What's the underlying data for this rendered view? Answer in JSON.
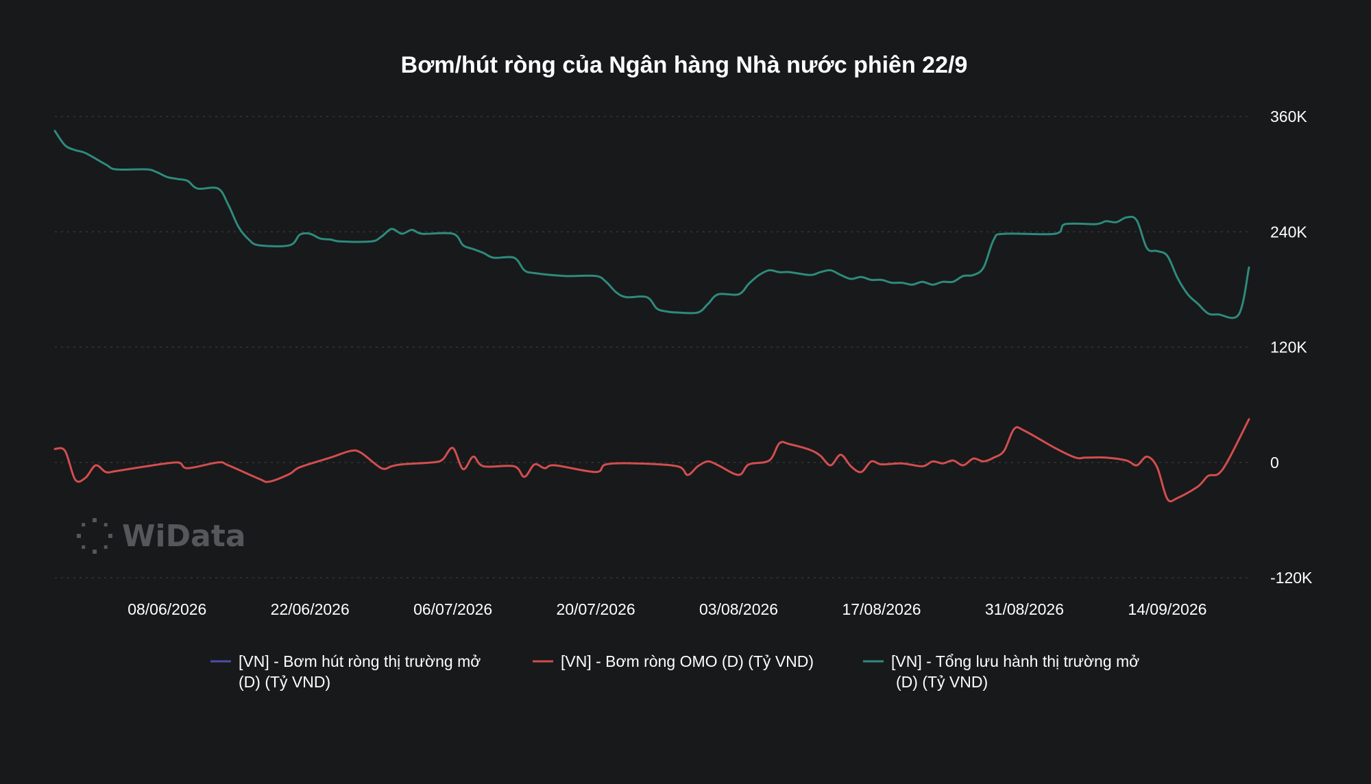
{
  "chart_data": {
    "type": "line",
    "title": "Bơm/hút ròng của Ngân hàng Nhà nước phiên 22/9",
    "watermark": "WiData",
    "colors": {
      "background": "#18191b",
      "grid": "#3a3c3f",
      "series_0": "#4b4fa6",
      "series_1": "#d24e4e",
      "series_2": "#2e8b7d"
    },
    "y_axis": {
      "position": "right",
      "ylim": [
        -120000,
        360000
      ],
      "ticks": [
        360000,
        240000,
        120000,
        0,
        -120000
      ],
      "tick_labels": [
        "360K",
        "240K",
        "120K",
        "0",
        "-120K"
      ],
      "grid": true
    },
    "x_axis": {
      "range": [
        "2026-05-28",
        "2026-09-22"
      ],
      "tick_dates": [
        "2026-06-08",
        "2026-06-22",
        "2026-07-06",
        "2026-07-20",
        "2026-08-03",
        "2026-08-17",
        "2026-08-31",
        "2026-09-14"
      ],
      "tick_labels": [
        "08/06/2026",
        "22/06/2026",
        "06/07/2026",
        "20/07/2026",
        "03/08/2026",
        "17/08/2026",
        "31/08/2026",
        "14/09/2026"
      ]
    },
    "legend_position": "bottom",
    "legend": [
      {
        "lines": [
          "[VN] - Bơm hút ròng thị trường mở",
          "(D) (Tỷ VND)"
        ]
      },
      {
        "lines": [
          "[VN] - Bơm ròng OMO (D) (Tỷ VND)"
        ]
      },
      {
        "lines": [
          "[VN] - Tổng lưu hành thị trường mở",
          "(D) (Tỷ VND)"
        ]
      }
    ],
    "series": [
      {
        "name": "[VN] - Bơm hút ròng thị trường mở (D) (Tỷ VND)",
        "points": []
      },
      {
        "name": "[VN] - Bơm ròng OMO (D) (Tỷ VND)",
        "points": [
          [
            "2026-05-28",
            14000
          ],
          [
            "2026-05-29",
            12000
          ],
          [
            "2026-05-30",
            -18000
          ],
          [
            "2026-05-31",
            -16000
          ],
          [
            "2026-06-01",
            -3000
          ],
          [
            "2026-06-02",
            -10000
          ],
          [
            "2026-06-03",
            -9000
          ],
          [
            "2026-06-06",
            -4000
          ],
          [
            "2026-06-09",
            0
          ],
          [
            "2026-06-10",
            -6000
          ],
          [
            "2026-06-13",
            0
          ],
          [
            "2026-06-14",
            -3000
          ],
          [
            "2026-06-17",
            -17000
          ],
          [
            "2026-06-18",
            -20000
          ],
          [
            "2026-06-20",
            -12000
          ],
          [
            "2026-06-21",
            -5000
          ],
          [
            "2026-06-24",
            5000
          ],
          [
            "2026-06-26",
            12000
          ],
          [
            "2026-06-27",
            10000
          ],
          [
            "2026-06-29",
            -6000
          ],
          [
            "2026-06-30",
            -4000
          ],
          [
            "2026-07-01",
            -2000
          ],
          [
            "2026-07-04",
            0
          ],
          [
            "2026-07-05",
            3000
          ],
          [
            "2026-07-06",
            15000
          ],
          [
            "2026-07-07",
            -7000
          ],
          [
            "2026-07-08",
            6000
          ],
          [
            "2026-07-09",
            -4000
          ],
          [
            "2026-07-12",
            -4000
          ],
          [
            "2026-07-13",
            -15000
          ],
          [
            "2026-07-14",
            -2000
          ],
          [
            "2026-07-15",
            -6000
          ],
          [
            "2026-07-16",
            -3000
          ],
          [
            "2026-07-20",
            -10000
          ],
          [
            "2026-07-21",
            -2000
          ],
          [
            "2026-07-24",
            -1000
          ],
          [
            "2026-07-28",
            -4000
          ],
          [
            "2026-07-29",
            -13000
          ],
          [
            "2026-07-30",
            -4000
          ],
          [
            "2026-07-31",
            1000
          ],
          [
            "2026-08-01",
            -3000
          ],
          [
            "2026-08-03",
            -13000
          ],
          [
            "2026-08-04",
            -2000
          ],
          [
            "2026-08-06",
            2000
          ],
          [
            "2026-08-07",
            20000
          ],
          [
            "2026-08-08",
            19000
          ],
          [
            "2026-08-10",
            13000
          ],
          [
            "2026-08-11",
            7000
          ],
          [
            "2026-08-12",
            -3000
          ],
          [
            "2026-08-13",
            8000
          ],
          [
            "2026-08-14",
            -4000
          ],
          [
            "2026-08-15",
            -10000
          ],
          [
            "2026-08-16",
            1000
          ],
          [
            "2026-08-17",
            -2000
          ],
          [
            "2026-08-19",
            -1000
          ],
          [
            "2026-08-21",
            -4000
          ],
          [
            "2026-08-22",
            1000
          ],
          [
            "2026-08-23",
            -1000
          ],
          [
            "2026-08-24",
            2000
          ],
          [
            "2026-08-25",
            -3000
          ],
          [
            "2026-08-26",
            4000
          ],
          [
            "2026-08-27",
            1000
          ],
          [
            "2026-08-28",
            5000
          ],
          [
            "2026-08-29",
            12000
          ],
          [
            "2026-08-30",
            35000
          ],
          [
            "2026-08-31",
            33000
          ],
          [
            "2026-09-03",
            15000
          ],
          [
            "2026-09-05",
            5000
          ],
          [
            "2026-09-06",
            5000
          ],
          [
            "2026-09-08",
            5000
          ],
          [
            "2026-09-10",
            2000
          ],
          [
            "2026-09-11",
            -3000
          ],
          [
            "2026-09-12",
            6000
          ],
          [
            "2026-09-13",
            -5000
          ],
          [
            "2026-09-14",
            -38000
          ],
          [
            "2026-09-15",
            -37000
          ],
          [
            "2026-09-17",
            -25000
          ],
          [
            "2026-09-18",
            -14000
          ],
          [
            "2026-09-19",
            -12000
          ],
          [
            "2026-09-20",
            3000
          ],
          [
            "2026-09-22",
            45000
          ]
        ]
      },
      {
        "name": "[VN] - Tổng lưu hành thị trường mở (D) (Tỷ VND)",
        "points": [
          [
            "2026-05-28",
            345000
          ],
          [
            "2026-05-29",
            330000
          ],
          [
            "2026-05-30",
            325000
          ],
          [
            "2026-05-31",
            322000
          ],
          [
            "2026-06-02",
            310000
          ],
          [
            "2026-06-03",
            305000
          ],
          [
            "2026-06-06",
            305000
          ],
          [
            "2026-06-07",
            302000
          ],
          [
            "2026-06-08",
            297000
          ],
          [
            "2026-06-09",
            295000
          ],
          [
            "2026-06-10",
            293000
          ],
          [
            "2026-06-11",
            285000
          ],
          [
            "2026-06-13",
            285000
          ],
          [
            "2026-06-14",
            268000
          ],
          [
            "2026-06-15",
            245000
          ],
          [
            "2026-06-16",
            232000
          ],
          [
            "2026-06-17",
            226000
          ],
          [
            "2026-06-20",
            226000
          ],
          [
            "2026-06-21",
            237000
          ],
          [
            "2026-06-22",
            238000
          ],
          [
            "2026-06-23",
            233000
          ],
          [
            "2026-06-24",
            232000
          ],
          [
            "2026-06-25",
            230000
          ],
          [
            "2026-06-28",
            230000
          ],
          [
            "2026-06-29",
            235000
          ],
          [
            "2026-06-30",
            243000
          ],
          [
            "2026-07-01",
            238000
          ],
          [
            "2026-07-02",
            242000
          ],
          [
            "2026-07-03",
            238000
          ],
          [
            "2026-07-06",
            238000
          ],
          [
            "2026-07-07",
            226000
          ],
          [
            "2026-07-08",
            222000
          ],
          [
            "2026-07-09",
            218000
          ],
          [
            "2026-07-10",
            213000
          ],
          [
            "2026-07-12",
            213000
          ],
          [
            "2026-07-13",
            200000
          ],
          [
            "2026-07-14",
            197000
          ],
          [
            "2026-07-17",
            194000
          ],
          [
            "2026-07-20",
            194000
          ],
          [
            "2026-07-21",
            188000
          ],
          [
            "2026-07-22",
            177000
          ],
          [
            "2026-07-23",
            172000
          ],
          [
            "2026-07-25",
            172000
          ],
          [
            "2026-07-26",
            160000
          ],
          [
            "2026-07-27",
            157000
          ],
          [
            "2026-07-28",
            156000
          ],
          [
            "2026-07-30",
            156000
          ],
          [
            "2026-07-31",
            165000
          ],
          [
            "2026-08-01",
            175000
          ],
          [
            "2026-08-03",
            175000
          ],
          [
            "2026-08-04",
            186000
          ],
          [
            "2026-08-05",
            195000
          ],
          [
            "2026-08-06",
            200000
          ],
          [
            "2026-08-07",
            198000
          ],
          [
            "2026-08-08",
            198000
          ],
          [
            "2026-08-10",
            195000
          ],
          [
            "2026-08-11",
            198000
          ],
          [
            "2026-08-12",
            200000
          ],
          [
            "2026-08-13",
            195000
          ],
          [
            "2026-08-14",
            191000
          ],
          [
            "2026-08-15",
            193000
          ],
          [
            "2026-08-16",
            190000
          ],
          [
            "2026-08-17",
            190000
          ],
          [
            "2026-08-18",
            187000
          ],
          [
            "2026-08-19",
            187000
          ],
          [
            "2026-08-20",
            185000
          ],
          [
            "2026-08-21",
            188000
          ],
          [
            "2026-08-22",
            185000
          ],
          [
            "2026-08-23",
            188000
          ],
          [
            "2026-08-24",
            188000
          ],
          [
            "2026-08-25",
            194000
          ],
          [
            "2026-08-26",
            195000
          ],
          [
            "2026-08-27",
            203000
          ],
          [
            "2026-08-28",
            232000
          ],
          [
            "2026-08-29",
            238000
          ],
          [
            "2026-09-03",
            238000
          ],
          [
            "2026-09-04",
            248000
          ],
          [
            "2026-09-07",
            248000
          ],
          [
            "2026-09-08",
            251000
          ],
          [
            "2026-09-09",
            250000
          ],
          [
            "2026-09-10",
            255000
          ],
          [
            "2026-09-11",
            252000
          ],
          [
            "2026-09-12",
            223000
          ],
          [
            "2026-09-13",
            220000
          ],
          [
            "2026-09-14",
            215000
          ],
          [
            "2026-09-15",
            192000
          ],
          [
            "2026-09-16",
            175000
          ],
          [
            "2026-09-17",
            165000
          ],
          [
            "2026-09-18",
            155000
          ],
          [
            "2026-09-19",
            154000
          ],
          [
            "2026-09-21",
            154000
          ],
          [
            "2026-09-22",
            203000
          ]
        ]
      }
    ]
  }
}
